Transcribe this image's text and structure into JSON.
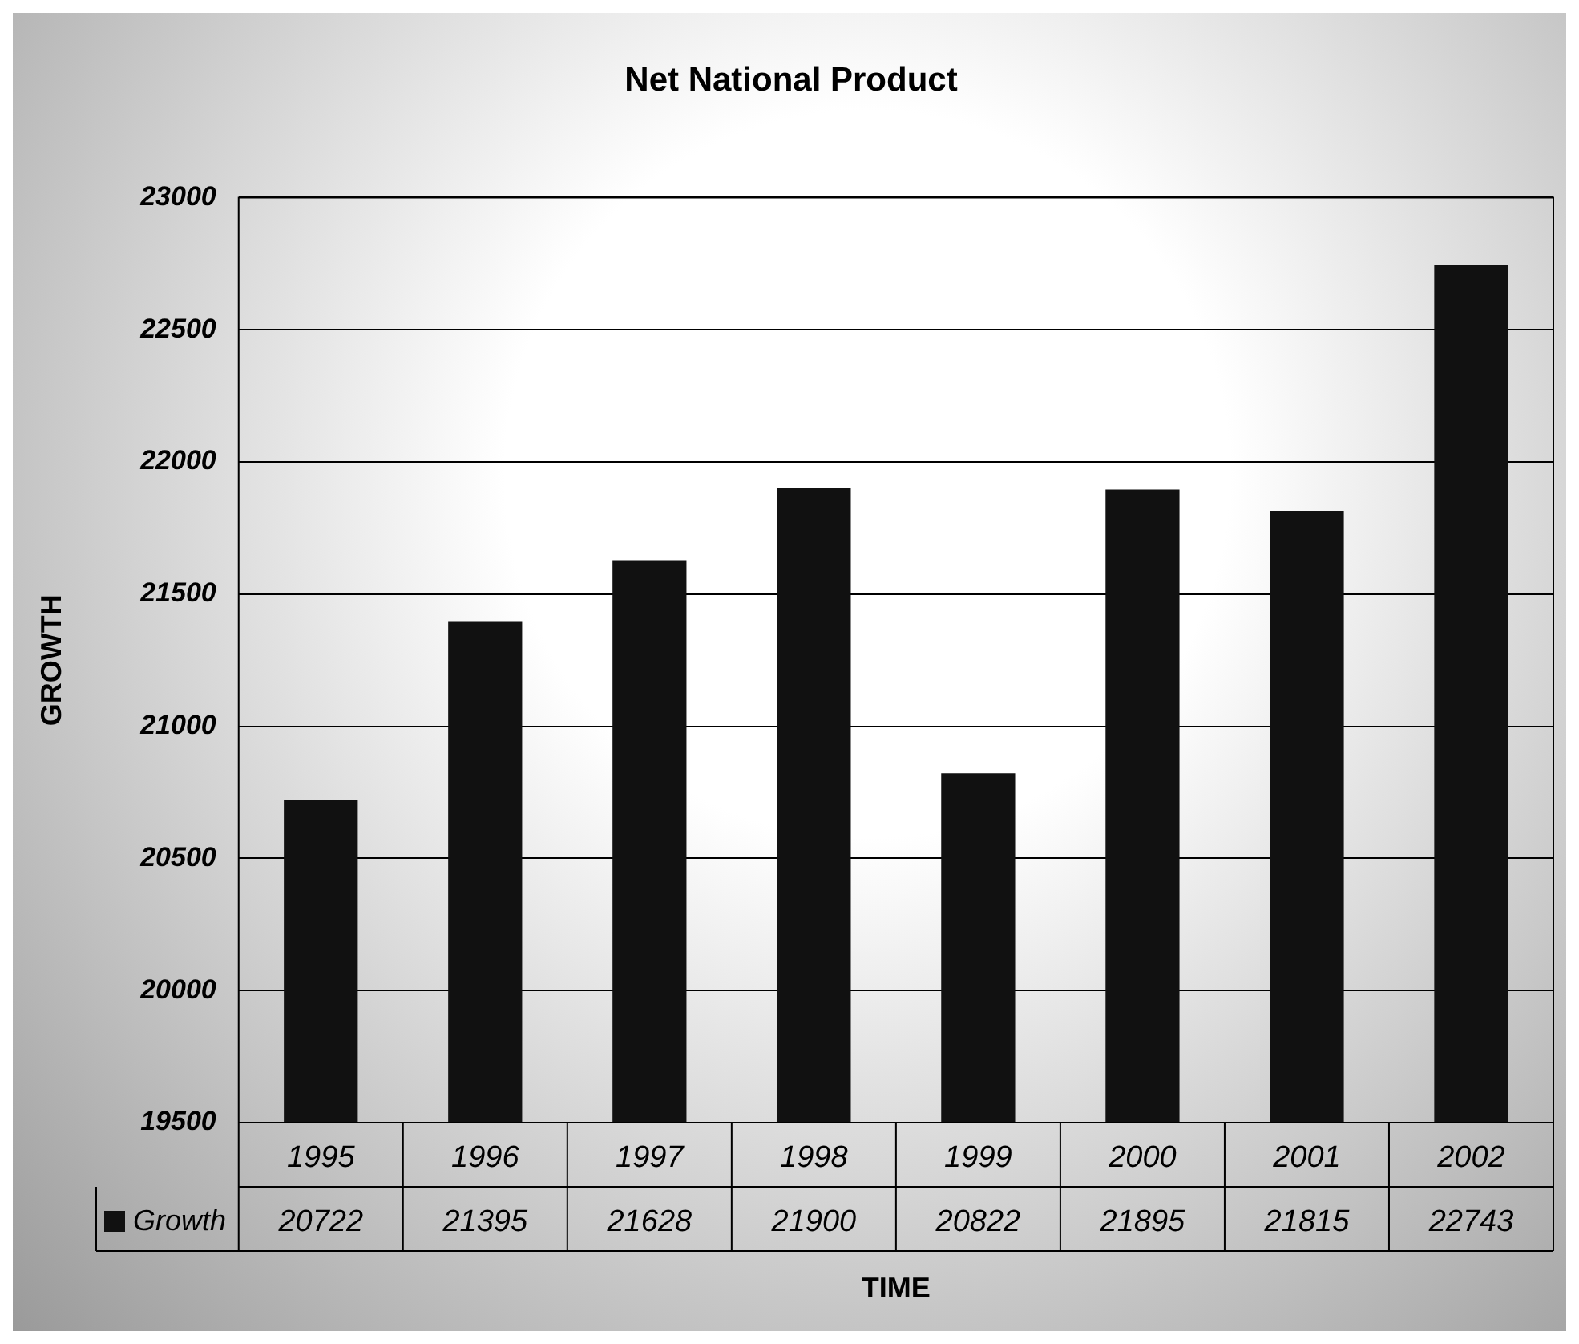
{
  "chart_data": {
    "type": "bar",
    "title": "Net National Product",
    "xlabel": "TIME",
    "ylabel": "GROWTH",
    "categories": [
      "1995",
      "1996",
      "1997",
      "1998",
      "1999",
      "2000",
      "2001",
      "2002"
    ],
    "series": [
      {
        "name": "Growth",
        "color": "#111111",
        "values": [
          20722,
          21395,
          21628,
          21900,
          20822,
          21895,
          21815,
          22743
        ]
      }
    ],
    "ylim": [
      19500,
      23000
    ],
    "yticks": [
      19500,
      20000,
      20500,
      21000,
      21500,
      22000,
      22500,
      23000
    ],
    "grid": "y",
    "legend": "bottom",
    "data_labels": true
  }
}
